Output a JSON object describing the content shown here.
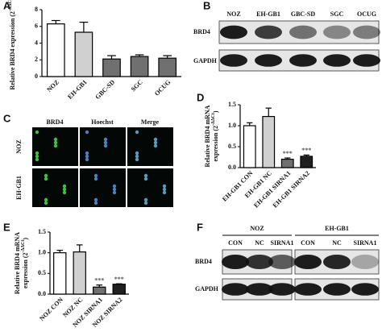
{
  "chart_data": [
    {
      "type": "bar",
      "panel": "A",
      "ylabel": [
        "Relative BRD4 expression (2"
      ],
      "ylabel_sup": "-ΔΔCt",
      "ylabel_end": ")",
      "categories": [
        "NOZ",
        "EH-GB1",
        "GBC-SD",
        "SGC",
        "OCUG"
      ],
      "values": [
        6.3,
        5.3,
        2.1,
        2.4,
        2.2
      ],
      "errors": [
        0.4,
        1.2,
        0.4,
        0.2,
        0.3
      ],
      "colors": [
        "#ffffff",
        "#d0d0d0",
        "#707070",
        "#707070",
        "#707070"
      ],
      "ylim": [
        0,
        8
      ],
      "yticks": [
        0,
        2,
        4,
        6,
        8
      ]
    },
    {
      "type": "bar",
      "panel": "D",
      "ylabel": [
        "Relative BRD4 mRNA",
        "expression (2"
      ],
      "ylabel_sup": "-ΔΔCt",
      "ylabel_end": ")",
      "categories": [
        "EH-GB1 CON",
        "EH-GB1 NC",
        "EH-GB1 SIRNA1",
        "EH-GB1 SIRNA2"
      ],
      "values": [
        1.0,
        1.22,
        0.2,
        0.27
      ],
      "errors": [
        0.07,
        0.2,
        0.03,
        0.03
      ],
      "significance": [
        null,
        null,
        "***",
        "***"
      ],
      "colors": [
        "#ffffff",
        "#d0d0d0",
        "#707070",
        "#202020"
      ],
      "ylim": [
        0,
        1.5
      ],
      "yticks": [
        {
          "value": 0,
          "label": "0.0"
        },
        {
          "value": 0.5,
          "label": "0.5"
        },
        {
          "value": 1,
          "label": "1.0"
        },
        {
          "value": 1.5,
          "label": "1.5"
        }
      ]
    },
    {
      "type": "bar",
      "panel": "E",
      "ylabel": [
        "Relative BRD4 mRNA",
        "expression (2"
      ],
      "ylabel_sup": "-ΔΔCt",
      "ylabel_end": ")",
      "categories": [
        "NOZ CON",
        "NOZ NC",
        "NOZ SIRNA1",
        "NOZ SIRNA2"
      ],
      "values": [
        1.0,
        1.02,
        0.17,
        0.24
      ],
      "errors": [
        0.06,
        0.17,
        0.05,
        0.01
      ],
      "significance": [
        null,
        null,
        "***",
        "***"
      ],
      "colors": [
        "#ffffff",
        "#d0d0d0",
        "#707070",
        "#202020"
      ],
      "ylim": [
        0,
        1.5
      ],
      "yticks": [
        {
          "value": 0,
          "label": "0.0"
        },
        {
          "value": 0.5,
          "label": "0.5"
        },
        {
          "value": 1,
          "label": "1.0"
        },
        {
          "value": 1.5,
          "label": "1.5"
        }
      ]
    }
  ],
  "blot_b": {
    "panel": "B",
    "columns": [
      "NOZ",
      "EH-GB1",
      "GBC-SD",
      "SGC",
      "OCUG"
    ],
    "rows": [
      "BRD4",
      "GAPDH"
    ]
  },
  "images_c": {
    "panel": "C",
    "columns": [
      "BRD4",
      "Hoechst",
      "Merge"
    ],
    "rows": [
      "NOZ",
      "EH-GB1"
    ]
  },
  "blot_f": {
    "panel": "F",
    "groups": [
      {
        "name": "NOZ",
        "lanes": [
          "CON",
          "NC",
          "SIRNA1"
        ]
      },
      {
        "name": "EH-GB1",
        "lanes": [
          "CON",
          "NC",
          "SIRNA1"
        ]
      }
    ],
    "rows": [
      "BRD4",
      "GAPDH"
    ]
  }
}
